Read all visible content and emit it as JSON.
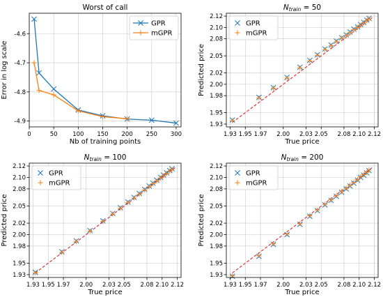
{
  "chart_data": [
    {
      "type": "line",
      "title": "Worst of call",
      "title_sub": "",
      "xlabel": "Nb of training points",
      "ylabel": "Error in log scale",
      "xlim": [
        0,
        310
      ],
      "ylim": [
        -4.92,
        -4.53
      ],
      "xticks": [
        0,
        50,
        100,
        150,
        200,
        250,
        300
      ],
      "yticks": [
        -4.6,
        -4.7,
        -4.8,
        -4.9
      ],
      "ytick_labels": [
        "-4.6",
        "-4.7",
        "-4.8",
        "-4.9"
      ],
      "legend_position": "top-right",
      "series": [
        {
          "name": "GPR",
          "marker": "x",
          "color": "#1f77b4",
          "x": [
            10,
            20,
            50,
            100,
            150,
            200,
            250,
            300
          ],
          "y": [
            -4.55,
            -4.735,
            -4.79,
            -4.862,
            -4.882,
            -4.893,
            -4.897,
            -4.907
          ]
        },
        {
          "name": "mGPR",
          "marker": "+",
          "color": "#ff7f0e",
          "x": [
            10,
            20,
            50,
            100,
            150,
            200
          ],
          "y": [
            -4.7,
            -4.795,
            -4.81,
            -4.865,
            -4.885,
            -4.892
          ]
        }
      ]
    },
    {
      "type": "scatter",
      "title": "N",
      "title_sub": "train",
      "title_suffix": " = 50",
      "xlabel": "True price",
      "ylabel": "Predicted price",
      "xlim": [
        1.925,
        2.125
      ],
      "ylim": [
        1.925,
        2.125
      ],
      "xticks": [
        1.93,
        1.95,
        1.97,
        2.0,
        2.03,
        2.05,
        2.08,
        2.1,
        2.12
      ],
      "yticks": [
        1.93,
        1.95,
        1.98,
        2.0,
        2.02,
        2.05,
        2.08,
        2.1,
        2.12
      ],
      "xtick_labels": [
        "1.93",
        "1.95",
        "1.97",
        "2.00",
        "2.03",
        "2.05",
        "2.08",
        "2.10",
        "2.12"
      ],
      "ytick_labels": [
        "1.93",
        "1.95",
        "1.98",
        "2.00",
        "2.02",
        "2.05",
        "2.08",
        "2.10",
        "2.12"
      ],
      "reference_line": "y = x",
      "legend_position": "top-left",
      "series": [
        {
          "name": "GPR",
          "marker": "x",
          "color": "#1f77b4",
          "x": [
            1.933,
            1.968,
            1.987,
            2.005,
            2.022,
            2.035,
            2.045,
            2.055,
            2.063,
            2.07,
            2.077,
            2.083,
            2.088,
            2.093,
            2.098,
            2.102,
            2.106,
            2.11,
            2.113
          ],
          "y": [
            1.937,
            1.977,
            1.994,
            2.012,
            2.03,
            2.042,
            2.052,
            2.062,
            2.069,
            2.076,
            2.082,
            2.087,
            2.092,
            2.097,
            2.101,
            2.105,
            2.109,
            2.113,
            2.116
          ]
        },
        {
          "name": "mGPR",
          "marker": "+",
          "color": "#ff7f0e",
          "x": [
            1.933,
            1.968,
            1.987,
            2.005,
            2.022,
            2.035,
            2.045,
            2.055,
            2.063,
            2.07,
            2.077,
            2.083,
            2.088,
            2.093,
            2.098,
            2.102,
            2.106,
            2.11,
            2.113
          ],
          "y": [
            1.936,
            1.976,
            1.993,
            2.011,
            2.029,
            2.041,
            2.051,
            2.061,
            2.068,
            2.075,
            2.081,
            2.086,
            2.091,
            2.096,
            2.1,
            2.104,
            2.108,
            2.112,
            2.115
          ]
        }
      ]
    },
    {
      "type": "scatter",
      "title": "N",
      "title_sub": "train",
      "title_suffix": " = 100",
      "xlabel": "True price",
      "ylabel": "Predicted price",
      "xlim": [
        1.925,
        2.125
      ],
      "ylim": [
        1.925,
        2.125
      ],
      "xticks": [
        1.93,
        1.95,
        1.97,
        2.0,
        2.03,
        2.05,
        2.08,
        2.1,
        2.12
      ],
      "yticks": [
        1.93,
        1.95,
        1.98,
        2.0,
        2.02,
        2.05,
        2.08,
        2.1,
        2.12
      ],
      "xtick_labels": [
        "1.93",
        "1.95",
        "1.97",
        "2.00",
        "2.03",
        "2.05",
        "2.08",
        "2.10",
        "2.12"
      ],
      "ytick_labels": [
        "1.93",
        "1.95",
        "1.98",
        "2.00",
        "2.02",
        "2.05",
        "2.08",
        "2.10",
        "2.12"
      ],
      "reference_line": "y = x",
      "legend_position": "top-left",
      "series": [
        {
          "name": "GPR",
          "marker": "x",
          "color": "#1f77b4",
          "x": [
            1.933,
            1.968,
            1.987,
            2.005,
            2.022,
            2.035,
            2.045,
            2.055,
            2.063,
            2.07,
            2.077,
            2.083,
            2.088,
            2.093,
            2.098,
            2.102,
            2.106,
            2.11,
            2.113
          ],
          "y": [
            1.934,
            1.97,
            1.989,
            2.007,
            2.024,
            2.037,
            2.047,
            2.057,
            2.065,
            2.072,
            2.079,
            2.085,
            2.09,
            2.095,
            2.1,
            2.104,
            2.108,
            2.112,
            2.115
          ]
        },
        {
          "name": "mGPR",
          "marker": "+",
          "color": "#ff7f0e",
          "x": [
            1.933,
            1.968,
            1.987,
            2.005,
            2.022,
            2.035,
            2.045,
            2.055,
            2.063,
            2.07,
            2.077,
            2.083,
            2.088,
            2.093,
            2.098,
            2.102,
            2.106,
            2.11,
            2.113
          ],
          "y": [
            1.933,
            1.969,
            1.988,
            2.006,
            2.023,
            2.036,
            2.046,
            2.056,
            2.064,
            2.071,
            2.078,
            2.084,
            2.089,
            2.094,
            2.099,
            2.103,
            2.107,
            2.111,
            2.114
          ]
        }
      ]
    },
    {
      "type": "scatter",
      "title": "N",
      "title_sub": "train",
      "title_suffix": " = 200",
      "xlabel": "True price",
      "ylabel": "Predicted price",
      "xlim": [
        1.925,
        2.125
      ],
      "ylim": [
        1.925,
        2.125
      ],
      "xticks": [
        1.93,
        1.95,
        1.97,
        2.0,
        2.03,
        2.05,
        2.08,
        2.1,
        2.12
      ],
      "yticks": [
        1.93,
        1.95,
        1.98,
        2.0,
        2.02,
        2.05,
        2.08,
        2.1,
        2.12
      ],
      "xtick_labels": [
        "1.93",
        "1.95",
        "1.97",
        "2.00",
        "2.03",
        "2.05",
        "2.08",
        "2.10",
        "2.12"
      ],
      "ytick_labels": [
        "1.93",
        "1.95",
        "1.98",
        "2.00",
        "2.02",
        "2.05",
        "2.08",
        "2.10",
        "2.12"
      ],
      "reference_line": "y = x",
      "legend_position": "top-left",
      "series": [
        {
          "name": "GPR",
          "marker": "x",
          "color": "#1f77b4",
          "x": [
            1.933,
            1.968,
            1.987,
            2.005,
            2.022,
            2.035,
            2.045,
            2.055,
            2.063,
            2.07,
            2.077,
            2.083,
            2.088,
            2.093,
            2.098,
            2.102,
            2.106,
            2.11,
            2.113
          ],
          "y": [
            1.927,
            1.962,
            1.983,
            2.0,
            2.018,
            2.032,
            2.042,
            2.052,
            2.06,
            2.067,
            2.074,
            2.08,
            2.085,
            2.09,
            2.095,
            2.1,
            2.104,
            2.108,
            2.112
          ]
        },
        {
          "name": "mGPR",
          "marker": "+",
          "color": "#ff7f0e",
          "x": [
            1.933,
            1.968,
            1.987,
            2.005,
            2.022,
            2.035,
            2.045,
            2.055,
            2.063,
            2.07,
            2.077,
            2.083,
            2.088,
            2.093,
            2.098,
            2.102,
            2.106,
            2.11,
            2.113
          ],
          "y": [
            1.928,
            1.963,
            1.984,
            2.001,
            2.019,
            2.033,
            2.043,
            2.053,
            2.061,
            2.068,
            2.075,
            2.081,
            2.086,
            2.091,
            2.096,
            2.101,
            2.105,
            2.109,
            2.113
          ]
        }
      ]
    }
  ]
}
